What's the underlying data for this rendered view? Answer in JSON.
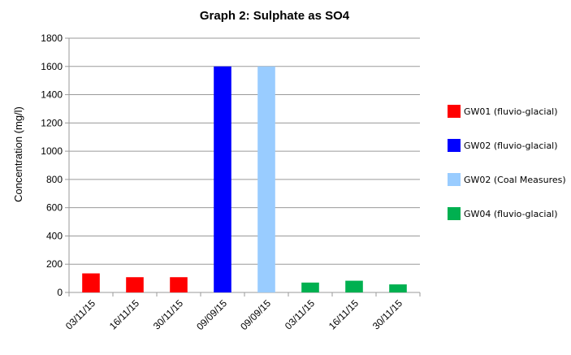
{
  "chart_data": {
    "type": "bar",
    "title": "Graph 2: Sulphate as SO4",
    "xlabel": "",
    "ylabel": "Concentration (mg/l)",
    "ylim": [
      0,
      1800
    ],
    "yticks": [
      0,
      200,
      400,
      600,
      800,
      1000,
      1200,
      1400,
      1600,
      1800
    ],
    "grid": true,
    "legend_position": "right",
    "categories": [
      "03/11/15",
      "16/11/15",
      "30/11/15",
      "09/09/15",
      "09/09/15",
      "03/11/15",
      "16/11/15",
      "30/11/15"
    ],
    "values": [
      135,
      108,
      108,
      1600,
      1600,
      70,
      83,
      57
    ],
    "bar_series": [
      0,
      0,
      0,
      1,
      2,
      3,
      3,
      3
    ],
    "series": [
      {
        "name": "GW01 (fluvio-glacial)",
        "color": "#ff0000"
      },
      {
        "name": "GW02 (fluvio-glacial)",
        "color": "#0000ff"
      },
      {
        "name": "GW02 (Coal Measures)",
        "color": "#99ccff"
      },
      {
        "name": "GW04 (fluvio-glacial)",
        "color": "#00b050"
      }
    ]
  }
}
